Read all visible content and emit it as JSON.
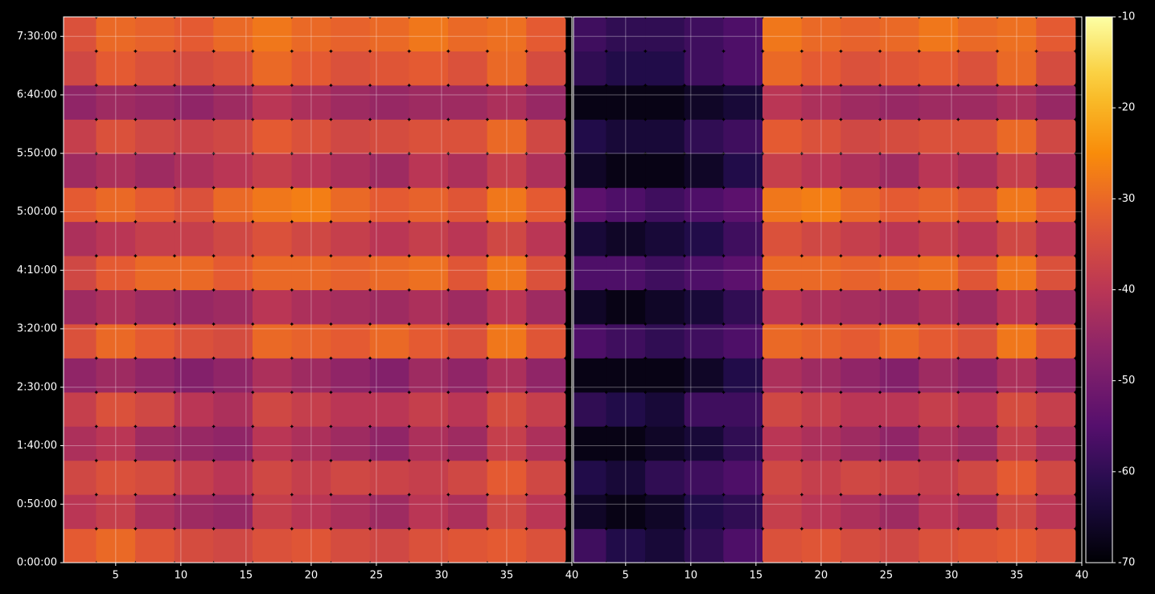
{
  "chart_data": [
    {
      "type": "heatmap",
      "x": [
        2,
        5,
        8,
        11,
        14,
        17,
        20,
        23,
        26,
        29,
        32,
        35,
        38
      ],
      "y": [
        875,
        2625,
        4375,
        6125,
        7875,
        9625,
        11375,
        13125,
        14875,
        16625,
        18375,
        20125,
        21875,
        23625,
        25375,
        27125
      ],
      "z": [
        [
          -32,
          -30,
          -33,
          -35,
          -36,
          -34,
          -33,
          -35,
          -36,
          -34,
          -33,
          -32,
          -34
        ],
        [
          -40,
          -38,
          -42,
          -44,
          -45,
          -38,
          -40,
          -42,
          -44,
          -40,
          -42,
          -36,
          -40
        ],
        [
          -36,
          -34,
          -35,
          -38,
          -40,
          -36,
          -38,
          -36,
          -37,
          -38,
          -36,
          -32,
          -36
        ],
        [
          -42,
          -40,
          -44,
          -45,
          -46,
          -40,
          -42,
          -44,
          -46,
          -42,
          -44,
          -38,
          -42
        ],
        [
          -38,
          -34,
          -36,
          -40,
          -42,
          -36,
          -38,
          -40,
          -40,
          -38,
          -40,
          -35,
          -38
        ],
        [
          -46,
          -44,
          -46,
          -48,
          -46,
          -42,
          -44,
          -46,
          -48,
          -44,
          -46,
          -42,
          -46
        ],
        [
          -34,
          -30,
          -32,
          -34,
          -35,
          -30,
          -31,
          -32,
          -30,
          -32,
          -34,
          -28,
          -33
        ],
        [
          -44,
          -42,
          -44,
          -45,
          -44,
          -40,
          -42,
          -43,
          -44,
          -42,
          -44,
          -40,
          -44
        ],
        [
          -36,
          -32,
          -30,
          -30,
          -32,
          -30,
          -30,
          -31,
          -30,
          -29,
          -33,
          -28,
          -34
        ],
        [
          -42,
          -40,
          -38,
          -38,
          -36,
          -34,
          -36,
          -38,
          -40,
          -38,
          -40,
          -36,
          -40
        ],
        [
          -32,
          -30,
          -32,
          -34,
          -30,
          -28,
          -27,
          -30,
          -32,
          -31,
          -33,
          -28,
          -32
        ],
        [
          -44,
          -42,
          -44,
          -42,
          -40,
          -38,
          -40,
          -42,
          -44,
          -40,
          -42,
          -38,
          -42
        ],
        [
          -38,
          -34,
          -36,
          -37,
          -36,
          -32,
          -34,
          -36,
          -35,
          -34,
          -34,
          -30,
          -36
        ],
        [
          -46,
          -44,
          -45,
          -46,
          -44,
          -40,
          -42,
          -44,
          -45,
          -44,
          -44,
          -42,
          -45
        ],
        [
          -36,
          -32,
          -34,
          -35,
          -34,
          -30,
          -32,
          -34,
          -33,
          -32,
          -34,
          -30,
          -35
        ],
        [
          -34,
          -30,
          -31,
          -32,
          -30,
          -28,
          -30,
          -31,
          -30,
          -28,
          -30,
          -29,
          -32
        ]
      ],
      "xlim": [
        1,
        40
      ],
      "xticks": [
        5,
        10,
        15,
        20,
        25,
        30,
        35,
        40
      ],
      "ylim": [
        0,
        28000
      ],
      "yticks": [
        {
          "value": 0,
          "label": "0:00:00"
        },
        {
          "value": 3000,
          "label": "0:50:00"
        },
        {
          "value": 6000,
          "label": "1:40:00"
        },
        {
          "value": 9000,
          "label": "2:30:00"
        },
        {
          "value": 12000,
          "label": "3:20:00"
        },
        {
          "value": 15000,
          "label": "4:10:00"
        },
        {
          "value": 18000,
          "label": "5:00:00"
        },
        {
          "value": 21000,
          "label": "5:50:00"
        },
        {
          "value": 24000,
          "label": "6:40:00"
        },
        {
          "value": 27000,
          "label": "7:30:00"
        }
      ],
      "grid": true
    },
    {
      "type": "heatmap",
      "x": [
        2,
        5,
        8,
        11,
        14,
        17,
        20,
        23,
        26,
        29,
        32,
        35,
        38
      ],
      "y": [
        875,
        2625,
        4375,
        6125,
        7875,
        9625,
        11375,
        13125,
        14875,
        16625,
        18375,
        20125,
        21875,
        23625,
        25375,
        27125
      ],
      "z": [
        [
          -58,
          -62,
          -64,
          -60,
          -56,
          -34,
          -33,
          -35,
          -36,
          -34,
          -33,
          -32,
          -34
        ],
        [
          -66,
          -68,
          -66,
          -62,
          -60,
          -38,
          -40,
          -42,
          -44,
          -40,
          -42,
          -36,
          -40
        ],
        [
          -62,
          -64,
          -60,
          -58,
          -56,
          -36,
          -38,
          -36,
          -37,
          -38,
          -36,
          -32,
          -36
        ],
        [
          -68,
          -68,
          -66,
          -64,
          -60,
          -40,
          -42,
          -44,
          -46,
          -42,
          -44,
          -38,
          -42
        ],
        [
          -60,
          -62,
          -64,
          -58,
          -58,
          -36,
          -38,
          -40,
          -40,
          -38,
          -40,
          -35,
          -38
        ],
        [
          -68,
          -68,
          -68,
          -66,
          -62,
          -42,
          -44,
          -46,
          -48,
          -44,
          -46,
          -42,
          -46
        ],
        [
          -56,
          -58,
          -60,
          -58,
          -56,
          -30,
          -31,
          -32,
          -30,
          -32,
          -34,
          -28,
          -33
        ],
        [
          -66,
          -68,
          -66,
          -64,
          -60,
          -40,
          -42,
          -43,
          -44,
          -42,
          -44,
          -40,
          -44
        ],
        [
          -56,
          -56,
          -58,
          -56,
          -54,
          -30,
          -30,
          -31,
          -30,
          -29,
          -33,
          -28,
          -34
        ],
        [
          -64,
          -66,
          -64,
          -62,
          -58,
          -34,
          -36,
          -38,
          -40,
          -38,
          -40,
          -36,
          -40
        ],
        [
          -54,
          -56,
          -58,
          -56,
          -54,
          -28,
          -27,
          -30,
          -32,
          -31,
          -33,
          -28,
          -32
        ],
        [
          -66,
          -68,
          -68,
          -66,
          -62,
          -38,
          -40,
          -42,
          -44,
          -40,
          -42,
          -38,
          -42
        ],
        [
          -62,
          -64,
          -64,
          -60,
          -58,
          -32,
          -34,
          -36,
          -35,
          -34,
          -34,
          -30,
          -36
        ],
        [
          -68,
          -68,
          -68,
          -66,
          -64,
          -40,
          -42,
          -44,
          -45,
          -44,
          -44,
          -42,
          -45
        ],
        [
          -60,
          -62,
          -62,
          -58,
          -56,
          -30,
          -32,
          -34,
          -33,
          -32,
          -34,
          -30,
          -35
        ],
        [
          -58,
          -60,
          -60,
          -58,
          -56,
          -28,
          -30,
          -31,
          -30,
          -28,
          -30,
          -29,
          -32
        ]
      ],
      "xlim": [
        1,
        40
      ],
      "xticks": [
        5,
        10,
        15,
        20,
        25,
        30,
        35,
        40
      ],
      "ylim": [
        0,
        28000
      ],
      "yticks": [
        {
          "value": 0,
          "label": "0:00:00"
        },
        {
          "value": 3000,
          "label": "0:50:00"
        },
        {
          "value": 6000,
          "label": "1:40:00"
        },
        {
          "value": 9000,
          "label": "2:30:00"
        },
        {
          "value": 12000,
          "label": "3:20:00"
        },
        {
          "value": 15000,
          "label": "4:10:00"
        },
        {
          "value": 18000,
          "label": "5:00:00"
        },
        {
          "value": 21000,
          "label": "5:50:00"
        },
        {
          "value": 24000,
          "label": "6:40:00"
        },
        {
          "value": 27000,
          "label": "7:30:00"
        }
      ],
      "grid": true
    }
  ],
  "colorbar": {
    "cmap": "inferno",
    "lim": [
      -70,
      -10
    ],
    "ticks": [
      -70,
      -60,
      -50,
      -40,
      -30,
      -20,
      -10
    ]
  }
}
